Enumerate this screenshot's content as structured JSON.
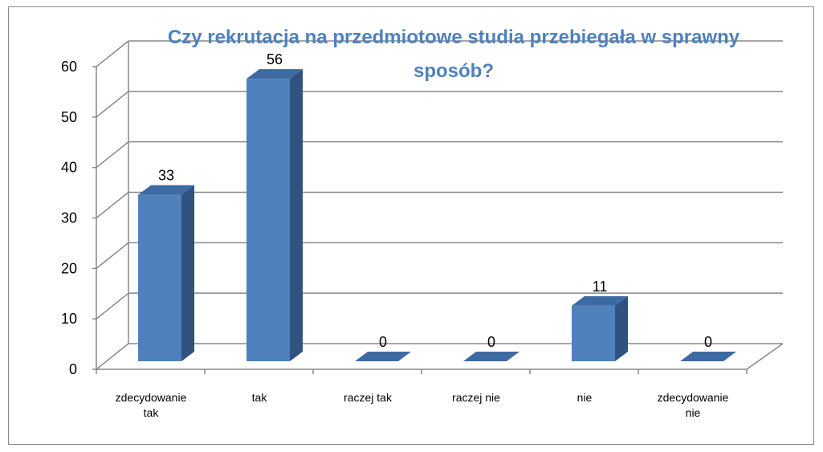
{
  "chart_data": {
    "type": "bar3d",
    "title": "Czy rekrutacja na przedmiotowe studia przebiegała w sprawny sposób?",
    "categories": [
      "zdecydowanie tak",
      "tak",
      "raczej tak",
      "raczej nie",
      "nie",
      "zdecydowanie nie"
    ],
    "values": [
      33,
      56,
      0,
      0,
      11,
      0
    ],
    "color": "#4f81bd",
    "ylim": [
      0,
      60
    ],
    "yticks": [
      0,
      10,
      20,
      30,
      40,
      50,
      60
    ],
    "grid": true
  }
}
